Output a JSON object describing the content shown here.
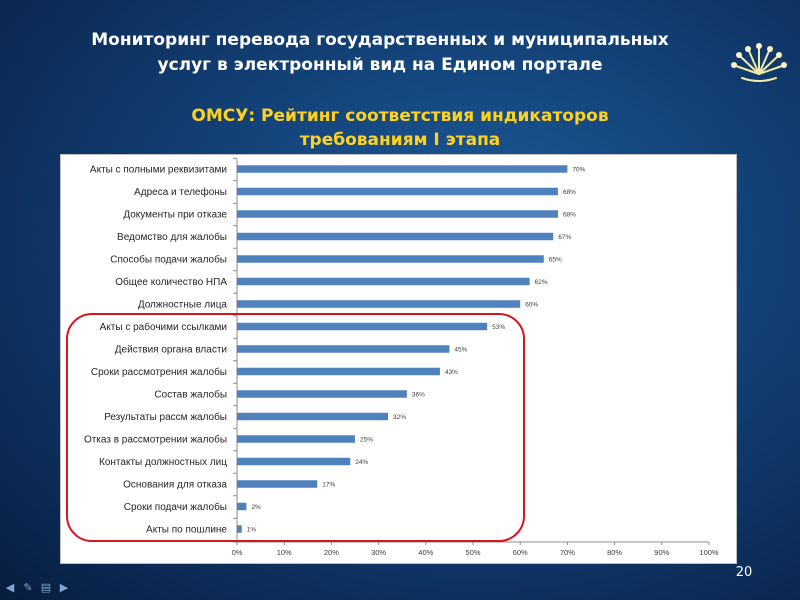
{
  "slide": {
    "title_line1": "Мониторинг перевода государственных и муниципальных",
    "title_line2": "услуг в электронный вид на Едином портале",
    "subtitle_line1": "ОМСУ: Рейтинг соответствия индикаторов",
    "subtitle_line2": "требованиям I этапа",
    "page_number": "20"
  },
  "colors": {
    "bar": "#4f81bd",
    "highlight": "#d9141e",
    "subtitle": "#ffd21f"
  },
  "nav": [
    "arrow-left-icon",
    "pencil-icon",
    "menu-icon",
    "arrow-right-icon"
  ],
  "chart_data": {
    "type": "bar",
    "orientation": "horizontal",
    "categories": [
      "Акты с полными реквизитами",
      "Адреса и телефоны",
      "Документы при отказе",
      "Ведомство для жалобы",
      "Способы подачи жалобы",
      "Общее количество НПА",
      "Должностные лица",
      "Акты с рабочими ссылками",
      "Действия органа власти",
      "Сроки рассмотрения жалобы",
      "Состав жалобы",
      "Результаты рассм жалобы",
      "Отказ в рассмотрении жалобы",
      "Контакты должностных лиц",
      "Основания для отказа",
      "Сроки подачи жалобы",
      "Акты по пошлине"
    ],
    "values": [
      70,
      68,
      68,
      67,
      65,
      62,
      60,
      53,
      45,
      43,
      36,
      32,
      25,
      24,
      17,
      2,
      1
    ],
    "value_labels": [
      "70%",
      "68%",
      "68%",
      "67%",
      "65%",
      "62%",
      "60%",
      "53%",
      "45%",
      "43%",
      "36%",
      "32%",
      "25%",
      "24%",
      "17%",
      "2%",
      "1%"
    ],
    "xlim": [
      0,
      100
    ],
    "x_ticks": [
      "0%",
      "10%",
      "20%",
      "30%",
      "40%",
      "50%",
      "60%",
      "70%",
      "80%",
      "90%",
      "100%"
    ],
    "grid": false,
    "title": "",
    "xlabel": "",
    "ylabel": ""
  }
}
